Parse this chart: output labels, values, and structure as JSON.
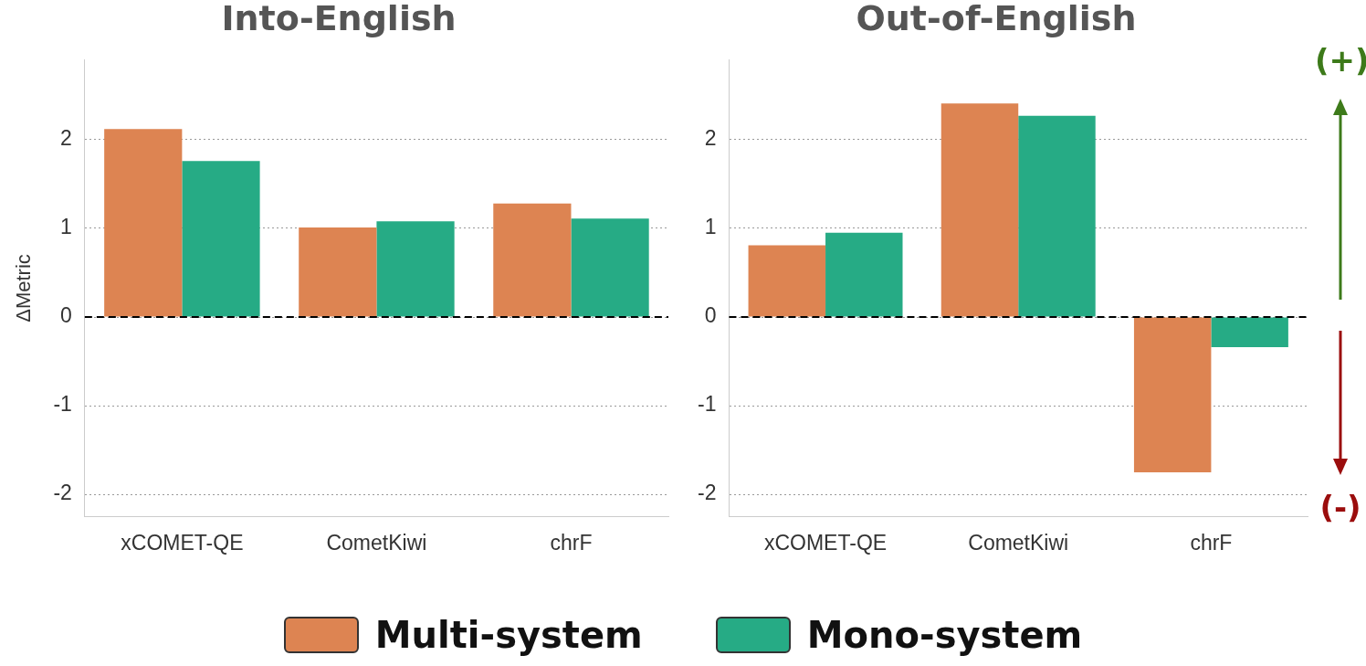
{
  "chart_data": [
    {
      "type": "bar",
      "title": "Into-English",
      "ylabel": "ΔMetric",
      "categories": [
        "xCOMET-QE",
        "CometKiwi",
        "chrF"
      ],
      "series": [
        {
          "name": "Multi-system",
          "color": "#dd8452",
          "values": [
            2.12,
            1.01,
            1.28
          ]
        },
        {
          "name": "Mono-system",
          "color": "#26ab85",
          "values": [
            1.76,
            1.08,
            1.11
          ]
        }
      ],
      "ylim": [
        -2.25,
        2.9
      ],
      "yticks": [
        -2,
        -1,
        0,
        1,
        2
      ],
      "grid": "y",
      "legend": "bottom",
      "ref_lines": [
        {
          "axis": "y",
          "value": 0,
          "color": "#000000",
          "line_style": "dashed"
        }
      ]
    },
    {
      "type": "bar",
      "title": "Out-of-English",
      "categories": [
        "xCOMET-QE",
        "CometKiwi",
        "chrF"
      ],
      "series": [
        {
          "color": "#dd8452",
          "values": [
            0.81,
            2.41,
            -1.75
          ]
        },
        {
          "color": "#26ab85",
          "values": [
            0.95,
            2.27,
            -0.34
          ]
        }
      ],
      "ylim": [
        -2.25,
        2.9
      ],
      "yticks": [
        -2,
        -1,
        0,
        1,
        2
      ],
      "grid": "y",
      "ref_lines": [
        {
          "axis": "y",
          "value": 0,
          "color": "#000000",
          "line_style": "dashed"
        }
      ],
      "annotations": [
        "(+)",
        "(-)"
      ]
    }
  ]
}
